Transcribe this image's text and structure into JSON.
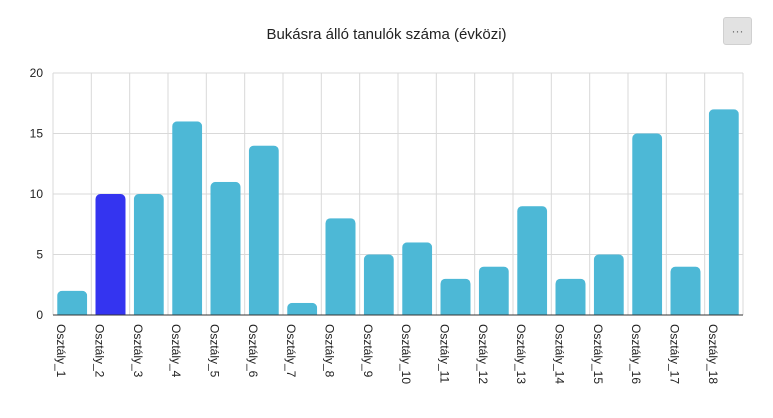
{
  "header": {
    "title": "Bukásra álló tanulók száma (évközi)",
    "menu_label": "···"
  },
  "colors": {
    "bar": "#4db8d6",
    "highlight": "#3434f0",
    "grid": "#d9d9d9"
  },
  "chart_data": {
    "type": "bar",
    "title": "Bukásra álló tanulók száma (évközi)",
    "xlabel": "",
    "ylabel": "",
    "categories": [
      "Osztály_1",
      "Osztály_2",
      "Osztály_3",
      "Osztály_4",
      "Osztály_5",
      "Osztály_6",
      "Osztály_7",
      "Osztály_8",
      "Osztály_9",
      "Osztály_10",
      "Osztály_11",
      "Osztály_12",
      "Osztály_13",
      "Osztály_14",
      "Osztály_15",
      "Osztály_16",
      "Osztály_17",
      "Osztály_18"
    ],
    "values": [
      2,
      10,
      10,
      16,
      11,
      14,
      1,
      8,
      5,
      6,
      3,
      4,
      9,
      3,
      5,
      15,
      4,
      17
    ],
    "highlighted_category": "Osztály_2",
    "ylim": [
      0,
      20
    ],
    "yticks": [
      0,
      5,
      10,
      15,
      20
    ],
    "grid": true,
    "legend": "none"
  }
}
